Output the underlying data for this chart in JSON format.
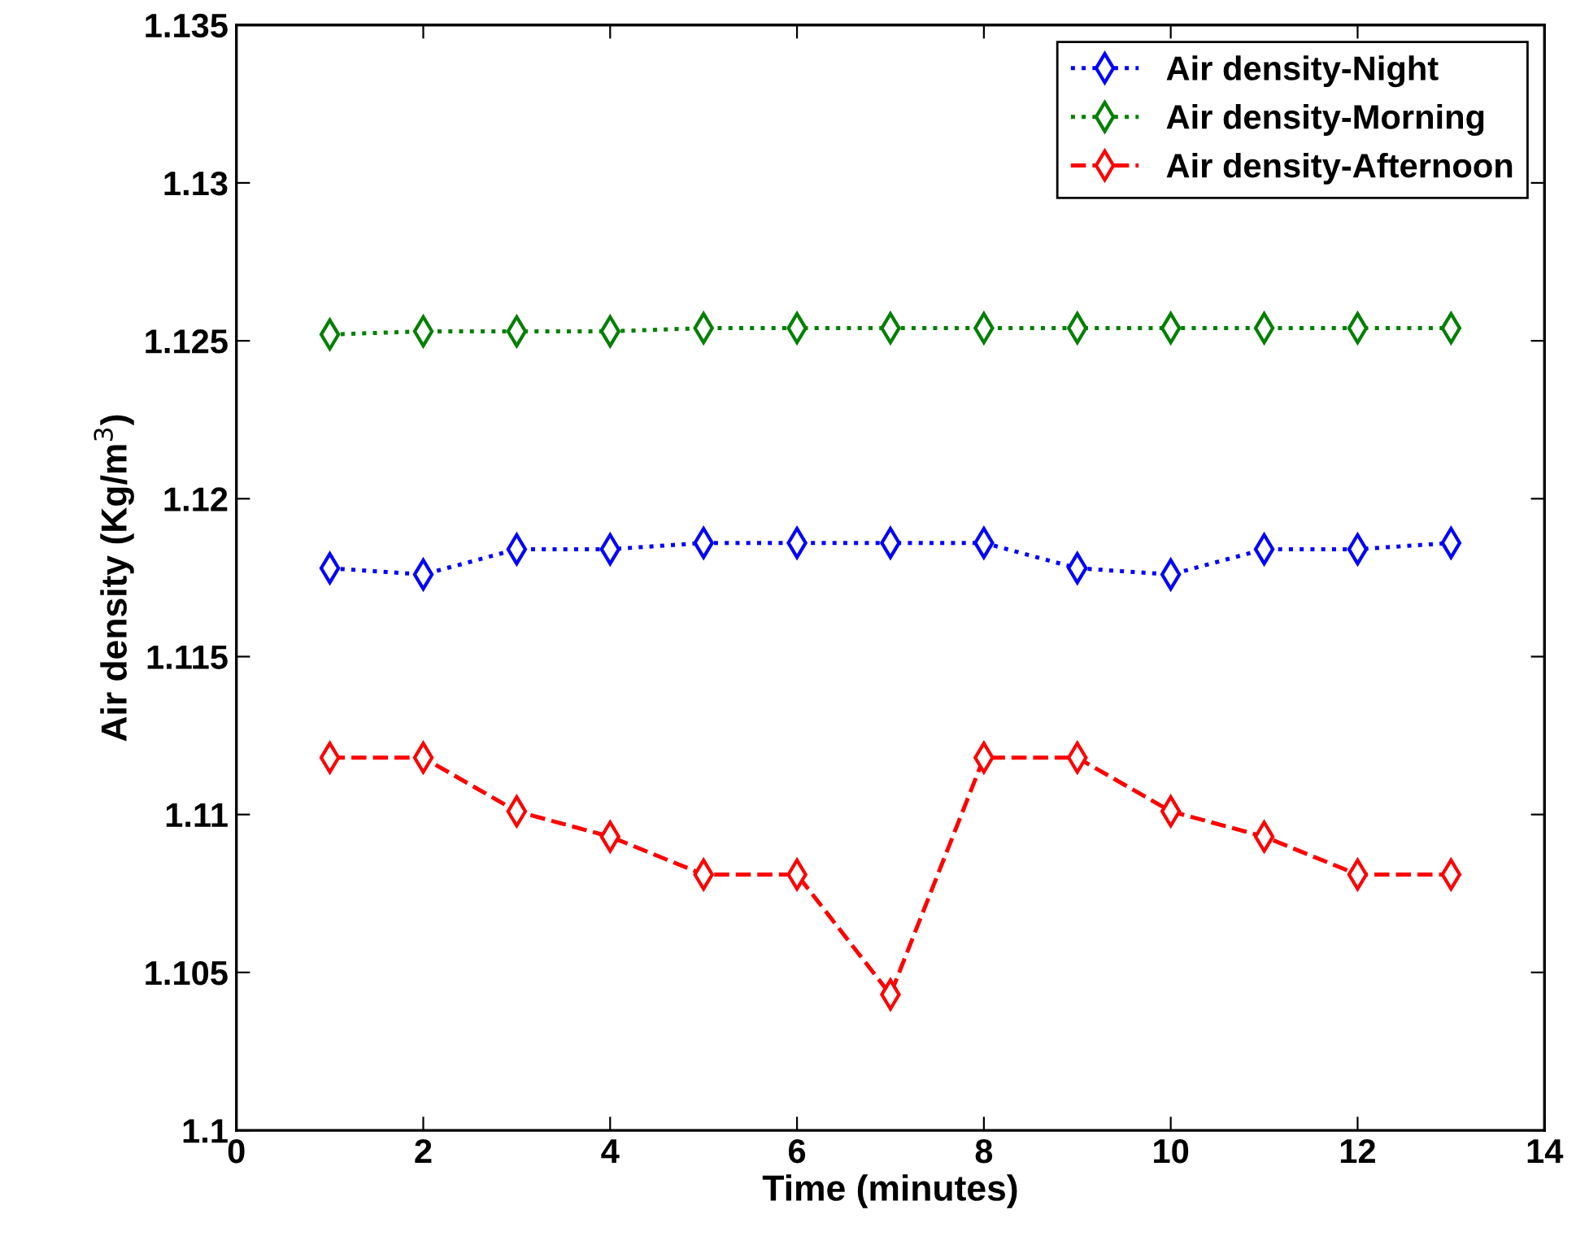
{
  "chart_data": {
    "type": "line",
    "xlabel": "Time (minutes)",
    "ylabel": "Air density (Kg/m$^{3}$)",
    "x": [
      1,
      2,
      3,
      4,
      5,
      6,
      7,
      8,
      9,
      10,
      11,
      12,
      13
    ],
    "series": [
      {
        "name": "Air density-Night",
        "color": "#0000ff",
        "line_style": "dotted",
        "values": [
          1.1178,
          1.1176,
          1.1184,
          1.1184,
          1.1186,
          1.1186,
          1.1186,
          1.1186,
          1.1178,
          1.1176,
          1.1184,
          1.1184,
          1.1186
        ]
      },
      {
        "name": "Air density-Morning",
        "color": "#008000",
        "line_style": "dotted",
        "values": [
          1.1252,
          1.1253,
          1.1253,
          1.1253,
          1.1254,
          1.1254,
          1.1254,
          1.1254,
          1.1254,
          1.1254,
          1.1254,
          1.1254,
          1.1254
        ]
      },
      {
        "name": "Air density-Afternoon",
        "color": "#ff0000",
        "line_style": "dashed",
        "values": [
          1.1118,
          1.1118,
          1.1101,
          1.1093,
          1.1081,
          1.1081,
          1.1043,
          1.1118,
          1.1118,
          1.1101,
          1.1093,
          1.1081,
          1.1081
        ]
      }
    ],
    "marker": "diamond",
    "xlim": [
      0,
      14
    ],
    "xticks": [
      0,
      2,
      4,
      6,
      8,
      10,
      12,
      14
    ],
    "ylim": [
      1.1,
      1.135
    ],
    "yticks": [
      1.1,
      1.105,
      1.11,
      1.115,
      1.12,
      1.125,
      1.13,
      1.135
    ],
    "grid": false,
    "legend": "top right"
  }
}
